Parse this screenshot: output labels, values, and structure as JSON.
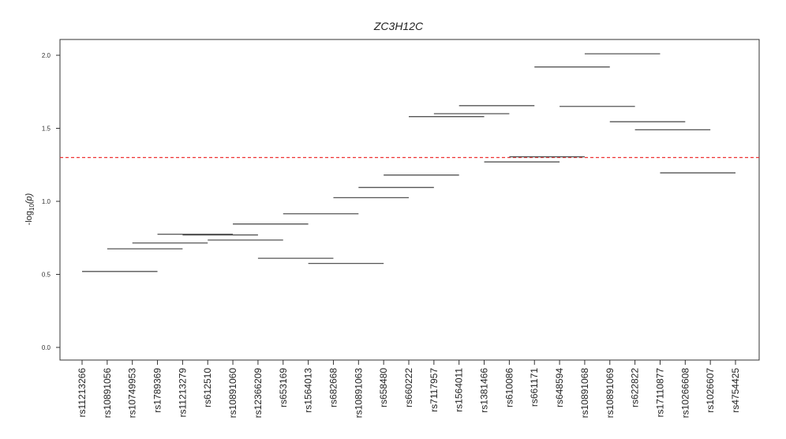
{
  "chart_data": {
    "type": "segment",
    "title": "ZC3H12C",
    "ylabel": "-log",
    "ylabel_sub": "10",
    "ylabel_arg": "(p)",
    "ylim": [
      -0.05,
      2.1
    ],
    "yticks": [
      0.0,
      0.5,
      1.0,
      1.5,
      2.0
    ],
    "ytick_labels": [
      "0.0",
      "0.5",
      "1.0",
      "1.5",
      "2.0"
    ],
    "categories": [
      "rs11213266",
      "rs10891056",
      "rs10749953",
      "rs1789369",
      "rs11213279",
      "rs612510",
      "rs10891060",
      "rs12366209",
      "rs653169",
      "rs1564013",
      "rs682668",
      "rs10891063",
      "rs658480",
      "rs660222",
      "rs7117957",
      "rs1564011",
      "rs1381466",
      "rs610086",
      "rs661171",
      "rs648594",
      "rs10891068",
      "rs10891069",
      "rs622822",
      "rs17110877",
      "rs10266608",
      "rs1026607",
      "rs4754425"
    ],
    "threshold": {
      "value": 1.3,
      "color": "#ee3333",
      "style": "dashed"
    },
    "segment_color": "#555555",
    "segments": [
      {
        "start": 0,
        "end": 3,
        "value": 0.52
      },
      {
        "start": 1,
        "end": 4,
        "value": 0.675
      },
      {
        "start": 2,
        "end": 5,
        "value": 0.715
      },
      {
        "start": 3,
        "end": 6,
        "value": 0.775
      },
      {
        "start": 4,
        "end": 7,
        "value": 0.77
      },
      {
        "start": 5,
        "end": 8,
        "value": 0.735
      },
      {
        "start": 6,
        "end": 9,
        "value": 0.845
      },
      {
        "start": 7,
        "end": 10,
        "value": 0.61
      },
      {
        "start": 8,
        "end": 11,
        "value": 0.915
      },
      {
        "start": 9,
        "end": 12,
        "value": 0.575
      },
      {
        "start": 10,
        "end": 13,
        "value": 1.025
      },
      {
        "start": 11,
        "end": 14,
        "value": 1.095
      },
      {
        "start": 12,
        "end": 15,
        "value": 1.18
      },
      {
        "start": 13,
        "end": 16,
        "value": 1.58
      },
      {
        "start": 14,
        "end": 17,
        "value": 1.6
      },
      {
        "start": 15,
        "end": 18,
        "value": 1.655
      },
      {
        "start": 16,
        "end": 19,
        "value": 1.27
      },
      {
        "start": 17,
        "end": 20,
        "value": 1.305
      },
      {
        "start": 18,
        "end": 21,
        "value": 1.92
      },
      {
        "start": 19,
        "end": 22,
        "value": 1.65
      },
      {
        "start": 20,
        "end": 23,
        "value": 2.01
      },
      {
        "start": 21,
        "end": 24,
        "value": 1.545
      },
      {
        "start": 22,
        "end": 25,
        "value": 1.49
      },
      {
        "start": 23,
        "end": 26,
        "value": 1.195
      }
    ]
  }
}
